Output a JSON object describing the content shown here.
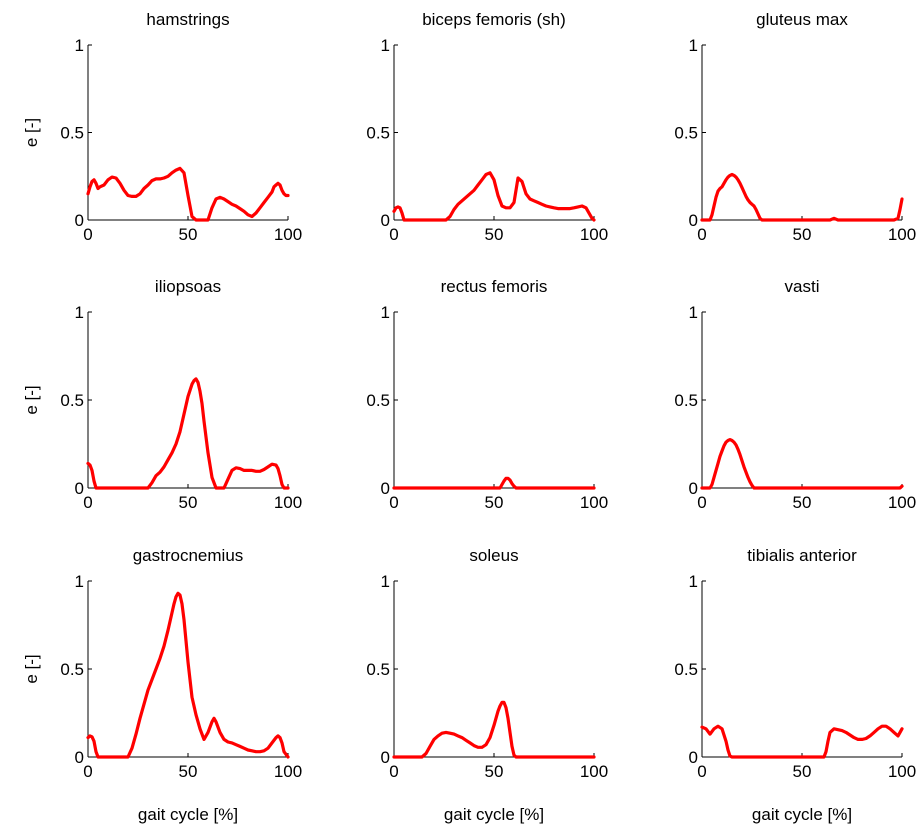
{
  "colors": {
    "series": "#ff0000",
    "axis": "#000000"
  },
  "chart_data": [
    {
      "type": "line",
      "title": "hamstrings",
      "xlabel": "",
      "ylabel": "e [-]",
      "xlim": [
        0,
        100
      ],
      "ylim": [
        0,
        1
      ],
      "xticks": [
        "0",
        "50",
        "100"
      ],
      "yticks": [
        "0",
        "0.5",
        "1"
      ],
      "x": [
        0,
        1,
        2,
        3,
        4,
        5,
        6,
        8,
        10,
        12,
        14,
        16,
        18,
        20,
        22,
        24,
        26,
        28,
        30,
        32,
        34,
        36,
        38,
        40,
        42,
        44,
        46,
        48,
        50,
        52,
        54,
        56,
        58,
        60,
        62,
        64,
        66,
        68,
        70,
        72,
        74,
        76,
        78,
        80,
        82,
        84,
        86,
        88,
        90,
        92,
        93,
        94,
        95,
        96,
        97,
        98,
        99,
        100
      ],
      "y": [
        0.15,
        0.19,
        0.22,
        0.23,
        0.21,
        0.18,
        0.19,
        0.2,
        0.23,
        0.245,
        0.24,
        0.21,
        0.17,
        0.14,
        0.135,
        0.135,
        0.15,
        0.18,
        0.2,
        0.225,
        0.235,
        0.235,
        0.24,
        0.25,
        0.27,
        0.285,
        0.295,
        0.27,
        0.14,
        0.02,
        0.0,
        0.0,
        0.0,
        0.0,
        0.07,
        0.12,
        0.13,
        0.12,
        0.105,
        0.09,
        0.08,
        0.065,
        0.05,
        0.03,
        0.02,
        0.04,
        0.07,
        0.1,
        0.13,
        0.16,
        0.19,
        0.2,
        0.21,
        0.2,
        0.17,
        0.15,
        0.14,
        0.14
      ]
    },
    {
      "type": "line",
      "title": "biceps femoris (sh)",
      "xlabel": "",
      "ylabel": "",
      "xlim": [
        0,
        100
      ],
      "ylim": [
        0,
        1
      ],
      "xticks": [
        "0",
        "50",
        "100"
      ],
      "yticks": [
        "0",
        "0.5",
        "1"
      ],
      "x": [
        0,
        1,
        2,
        3,
        4,
        5,
        6,
        8,
        10,
        12,
        14,
        16,
        18,
        20,
        22,
        24,
        26,
        28,
        30,
        32,
        34,
        36,
        38,
        40,
        42,
        44,
        46,
        48,
        50,
        52,
        54,
        56,
        58,
        60,
        62,
        64,
        66,
        68,
        70,
        72,
        74,
        76,
        78,
        80,
        82,
        84,
        86,
        88,
        90,
        92,
        94,
        96,
        97,
        98,
        99,
        100
      ],
      "y": [
        0.05,
        0.07,
        0.075,
        0.07,
        0.04,
        0.0,
        0.0,
        0.0,
        0.0,
        0.0,
        0.0,
        0.0,
        0.0,
        0.0,
        0.0,
        0.0,
        0.0,
        0.02,
        0.06,
        0.09,
        0.11,
        0.13,
        0.15,
        0.17,
        0.2,
        0.23,
        0.26,
        0.27,
        0.23,
        0.14,
        0.08,
        0.07,
        0.07,
        0.1,
        0.24,
        0.22,
        0.15,
        0.12,
        0.11,
        0.1,
        0.09,
        0.08,
        0.075,
        0.07,
        0.065,
        0.065,
        0.065,
        0.065,
        0.07,
        0.075,
        0.08,
        0.07,
        0.05,
        0.03,
        0.01,
        0.0
      ]
    },
    {
      "type": "line",
      "title": "gluteus max",
      "xlabel": "",
      "ylabel": "",
      "xlim": [
        0,
        100
      ],
      "ylim": [
        0,
        1
      ],
      "xticks": [
        "0",
        "50",
        "100"
      ],
      "yticks": [
        "0",
        "0.5",
        "1"
      ],
      "x": [
        0,
        4,
        5,
        6,
        7,
        8,
        9,
        10,
        11,
        12,
        13,
        14,
        15,
        16,
        17,
        18,
        19,
        20,
        21,
        22,
        23,
        24,
        25,
        26,
        27,
        28,
        29,
        30,
        40,
        50,
        60,
        64,
        66,
        68,
        70,
        80,
        90,
        96,
        98,
        99,
        100
      ],
      "y": [
        0.0,
        0.0,
        0.03,
        0.08,
        0.13,
        0.165,
        0.18,
        0.19,
        0.21,
        0.23,
        0.245,
        0.255,
        0.26,
        0.255,
        0.245,
        0.23,
        0.21,
        0.185,
        0.16,
        0.135,
        0.115,
        0.1,
        0.09,
        0.08,
        0.06,
        0.035,
        0.01,
        0.0,
        0.0,
        0.0,
        0.0,
        0.0,
        0.01,
        0.0,
        0.0,
        0.0,
        0.0,
        0.0,
        0.01,
        0.06,
        0.12
      ]
    },
    {
      "type": "line",
      "title": "iliopsoas",
      "xlabel": "",
      "ylabel": "e [-]",
      "xlim": [
        0,
        100
      ],
      "ylim": [
        0,
        1
      ],
      "xticks": [
        "0",
        "50",
        "100"
      ],
      "yticks": [
        "0",
        "0.5",
        "1"
      ],
      "x": [
        0,
        1,
        2,
        3,
        4,
        5,
        10,
        20,
        30,
        32,
        34,
        36,
        38,
        40,
        42,
        44,
        46,
        48,
        50,
        52,
        53,
        54,
        55,
        56,
        57,
        58,
        60,
        62,
        64,
        66,
        68,
        70,
        72,
        74,
        76,
        78,
        80,
        82,
        84,
        86,
        88,
        90,
        92,
        94,
        95,
        96,
        97,
        98,
        100
      ],
      "y": [
        0.14,
        0.13,
        0.1,
        0.04,
        0.0,
        0.0,
        0.0,
        0.0,
        0.0,
        0.03,
        0.07,
        0.09,
        0.12,
        0.16,
        0.2,
        0.25,
        0.32,
        0.42,
        0.52,
        0.59,
        0.61,
        0.62,
        0.6,
        0.55,
        0.48,
        0.38,
        0.2,
        0.06,
        0.0,
        0.0,
        0.0,
        0.05,
        0.1,
        0.115,
        0.11,
        0.1,
        0.1,
        0.1,
        0.095,
        0.095,
        0.105,
        0.12,
        0.135,
        0.13,
        0.11,
        0.07,
        0.02,
        0.0,
        0.0
      ]
    },
    {
      "type": "line",
      "title": "rectus femoris",
      "xlabel": "",
      "ylabel": "",
      "xlim": [
        0,
        100
      ],
      "ylim": [
        0,
        1
      ],
      "xticks": [
        "0",
        "50",
        "100"
      ],
      "yticks": [
        "0",
        "0.5",
        "1"
      ],
      "x": [
        0,
        10,
        20,
        30,
        40,
        50,
        53,
        54,
        55,
        56,
        57,
        58,
        59,
        60,
        61,
        62,
        70,
        80,
        90,
        100
      ],
      "y": [
        0.0,
        0.0,
        0.0,
        0.0,
        0.0,
        0.0,
        0.0,
        0.02,
        0.04,
        0.055,
        0.055,
        0.045,
        0.025,
        0.01,
        0.0,
        0.0,
        0.0,
        0.0,
        0.0,
        0.0
      ]
    },
    {
      "type": "line",
      "title": "vasti",
      "xlabel": "",
      "ylabel": "",
      "xlim": [
        0,
        100
      ],
      "ylim": [
        0,
        1
      ],
      "xticks": [
        "0",
        "50",
        "100"
      ],
      "yticks": [
        "0",
        "0.5",
        "1"
      ],
      "x": [
        0,
        4,
        5,
        6,
        7,
        8,
        9,
        10,
        11,
        12,
        13,
        14,
        15,
        16,
        17,
        18,
        19,
        20,
        21,
        22,
        23,
        24,
        25,
        26,
        30,
        40,
        50,
        60,
        70,
        80,
        90,
        99,
        100
      ],
      "y": [
        0.0,
        0.0,
        0.02,
        0.06,
        0.1,
        0.14,
        0.18,
        0.21,
        0.24,
        0.26,
        0.27,
        0.275,
        0.27,
        0.26,
        0.245,
        0.22,
        0.19,
        0.155,
        0.12,
        0.09,
        0.06,
        0.035,
        0.015,
        0.0,
        0.0,
        0.0,
        0.0,
        0.0,
        0.0,
        0.0,
        0.0,
        0.0,
        0.01
      ]
    },
    {
      "type": "line",
      "title": "gastrocnemius",
      "xlabel": "gait cycle  [%]",
      "ylabel": "e [-]",
      "xlim": [
        0,
        100
      ],
      "ylim": [
        0,
        1
      ],
      "xticks": [
        "0",
        "50",
        "100"
      ],
      "yticks": [
        "0",
        "0.5",
        "1"
      ],
      "x": [
        0,
        1,
        2,
        3,
        4,
        5,
        10,
        15,
        20,
        22,
        24,
        26,
        28,
        30,
        32,
        34,
        36,
        38,
        40,
        42,
        43,
        44,
        45,
        46,
        47,
        48,
        49,
        50,
        52,
        54,
        56,
        58,
        60,
        62,
        63,
        64,
        66,
        68,
        70,
        72,
        74,
        76,
        78,
        80,
        82,
        84,
        86,
        88,
        90,
        92,
        94,
        95,
        96,
        97,
        98,
        100
      ],
      "y": [
        0.11,
        0.12,
        0.115,
        0.09,
        0.03,
        0.0,
        0.0,
        0.0,
        0.0,
        0.05,
        0.13,
        0.22,
        0.3,
        0.38,
        0.44,
        0.5,
        0.56,
        0.63,
        0.72,
        0.82,
        0.87,
        0.91,
        0.93,
        0.92,
        0.87,
        0.78,
        0.66,
        0.54,
        0.34,
        0.24,
        0.16,
        0.1,
        0.14,
        0.2,
        0.22,
        0.2,
        0.14,
        0.1,
        0.085,
        0.08,
        0.07,
        0.06,
        0.05,
        0.04,
        0.035,
        0.03,
        0.03,
        0.035,
        0.05,
        0.08,
        0.11,
        0.12,
        0.11,
        0.08,
        0.03,
        0.0
      ]
    },
    {
      "type": "line",
      "title": "soleus",
      "xlabel": "gait cycle  [%]",
      "ylabel": "",
      "xlim": [
        0,
        100
      ],
      "ylim": [
        0,
        1
      ],
      "xticks": [
        "0",
        "50",
        "100"
      ],
      "yticks": [
        "0",
        "0.5",
        "1"
      ],
      "x": [
        0,
        5,
        10,
        14,
        16,
        18,
        20,
        22,
        24,
        26,
        28,
        30,
        32,
        34,
        36,
        38,
        40,
        42,
        44,
        46,
        48,
        50,
        52,
        53,
        54,
        55,
        56,
        57,
        58,
        59,
        60,
        61,
        62,
        70,
        80,
        90,
        100
      ],
      "y": [
        0.0,
        0.0,
        0.0,
        0.0,
        0.02,
        0.06,
        0.1,
        0.12,
        0.135,
        0.14,
        0.135,
        0.13,
        0.12,
        0.11,
        0.095,
        0.08,
        0.065,
        0.055,
        0.055,
        0.07,
        0.11,
        0.18,
        0.26,
        0.29,
        0.31,
        0.31,
        0.28,
        0.22,
        0.14,
        0.06,
        0.01,
        0.0,
        0.0,
        0.0,
        0.0,
        0.0,
        0.0
      ]
    },
    {
      "type": "line",
      "title": "tibialis anterior",
      "xlabel": "gait cycle  [%]",
      "ylabel": "",
      "xlim": [
        0,
        100
      ],
      "ylim": [
        0,
        1
      ],
      "xticks": [
        "0",
        "50",
        "100"
      ],
      "yticks": [
        "0",
        "0.5",
        "1"
      ],
      "x": [
        0,
        2,
        4,
        6,
        8,
        10,
        12,
        13,
        14,
        15,
        20,
        30,
        40,
        50,
        55,
        60,
        61,
        62,
        63,
        64,
        66,
        68,
        70,
        72,
        74,
        76,
        78,
        80,
        82,
        84,
        86,
        88,
        90,
        92,
        94,
        96,
        98,
        99,
        100
      ],
      "y": [
        0.17,
        0.16,
        0.13,
        0.16,
        0.175,
        0.16,
        0.09,
        0.04,
        0.005,
        0.0,
        0.0,
        0.0,
        0.0,
        0.0,
        0.0,
        0.0,
        0.0,
        0.03,
        0.09,
        0.14,
        0.16,
        0.155,
        0.15,
        0.14,
        0.125,
        0.11,
        0.1,
        0.1,
        0.105,
        0.12,
        0.14,
        0.16,
        0.175,
        0.175,
        0.16,
        0.14,
        0.12,
        0.14,
        0.16
      ]
    }
  ]
}
